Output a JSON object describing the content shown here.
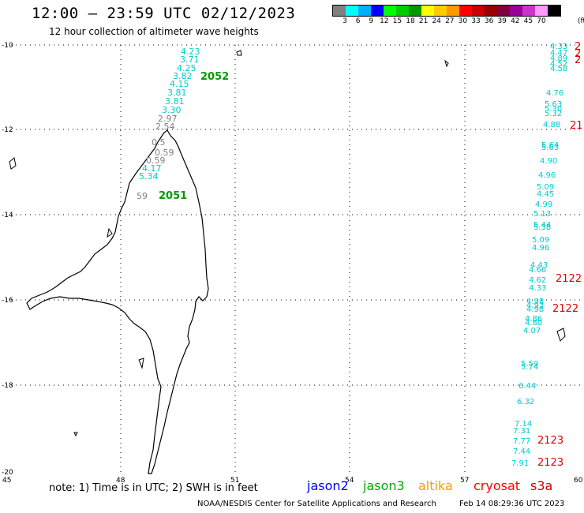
{
  "header": {
    "title": "12:00 – 23:59 UTC 02/12/2023",
    "subtitle": "12 hour collection of altimeter wave heights"
  },
  "legend": {
    "colors": [
      "#808080",
      "#00ffff",
      "#00b0ff",
      "#0000ff",
      "#00ff00",
      "#00cc00",
      "#009900",
      "#ffff00",
      "#ffcc00",
      "#ff9900",
      "#ff0000",
      "#cc0000",
      "#990000",
      "#800040",
      "#990099",
      "#cc33cc",
      "#ff99ff",
      "#000000"
    ],
    "labels": [
      "3",
      "6",
      "9",
      "12",
      "15",
      "18",
      "21",
      "24",
      "27",
      "30",
      "33",
      "36",
      "39",
      "42",
      "45",
      "70"
    ],
    "unit": "(ft)"
  },
  "axes": {
    "lat_labels": [
      "-10",
      "-12",
      "-14",
      "-16",
      "-18",
      "-20"
    ],
    "lon_labels": [
      "45",
      "48",
      "51",
      "54",
      "57",
      "60"
    ]
  },
  "tracks": {
    "jason3_a": {
      "id": "2052",
      "values": [
        {
          "v": "4.23",
          "c": "#00cccc"
        },
        {
          "v": "3.71",
          "c": "#00cccc"
        },
        {
          "v": "4.25",
          "c": "#00cccc"
        },
        {
          "v": "3.82",
          "c": "#00cccc"
        },
        {
          "v": "4.15",
          "c": "#00cccc"
        },
        {
          "v": "3.81",
          "c": "#00cccc"
        },
        {
          "v": "3.81",
          "c": "#00cccc"
        },
        {
          "v": "3.30",
          "c": "#00cccc"
        },
        {
          "v": "2.97",
          "c": "#808080"
        },
        {
          "v": "2.54",
          "c": "#808080"
        },
        {
          "v": "0.5",
          "c": "#808080"
        }
      ]
    },
    "jason3_b": {
      "id": "2051",
      "values": [
        {
          "v": "0.59",
          "c": "#808080"
        },
        {
          "v": "0.59",
          "c": "#808080"
        },
        {
          "v": "4.17",
          "c": "#00cccc"
        },
        {
          "v": "5.34",
          "c": "#00cccc"
        },
        {
          "v": "59",
          "c": "#808080"
        }
      ]
    },
    "cryosat_east": {
      "ids": [
        "2",
        "2",
        "2",
        "21",
        "2122",
        "2122",
        "2123",
        "2123"
      ],
      "values": [
        "4.33",
        "4.47",
        "4.89",
        "4.52",
        "4.58",
        "4.76",
        "5.63",
        "5.30",
        "5.32",
        "4.88",
        "5.64",
        "5.63",
        "4.90",
        "4.96",
        "5.09",
        "4.45",
        "4.99",
        "5.13",
        "5.44",
        "5.38",
        "5.09",
        "4.96",
        "4.43",
        "4.66",
        "4.62",
        "4.33",
        "4.98",
        "4.93",
        "4.98",
        "4.86",
        "4.80",
        "4.07",
        "5.59",
        "5.74",
        "6.44",
        "6.32",
        "7.14",
        "7.31",
        "7.77",
        "7.44",
        "7.91"
      ]
    }
  },
  "footer": {
    "note": "note: 1) Time is in UTC; 2) SWH is in feet",
    "satellites": [
      {
        "name": "jason2",
        "color": "#0000ff"
      },
      {
        "name": "jason3",
        "color": "#00aa00"
      },
      {
        "name": "altika",
        "color": "#ff9900"
      },
      {
        "name": "cryosat",
        "color": "#ff0000"
      },
      {
        "name": "s3a",
        "color": "#cc0000"
      }
    ],
    "credit": "NOAA/NESDIS Center for Satellite Applications and Research",
    "timestamp": "Feb 14 08:29:36 UTC 2023"
  }
}
